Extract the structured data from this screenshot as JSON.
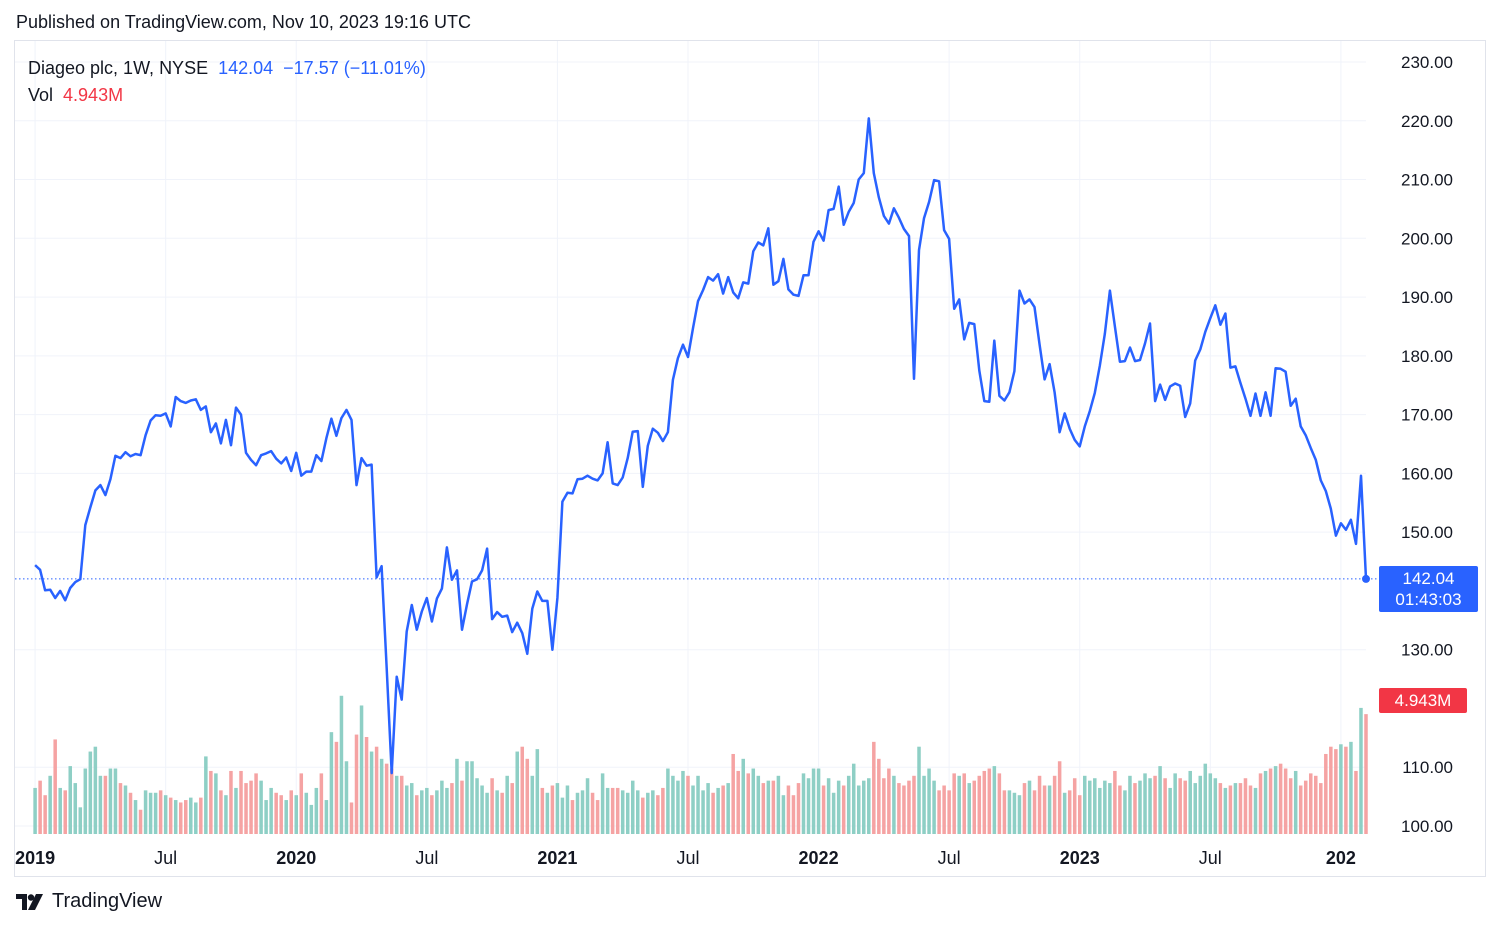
{
  "header": {
    "published": "Published on TradingView.com, Nov 10, 2023 19:16 UTC"
  },
  "legend": {
    "symbol": "Diageo plc, 1W, NYSE",
    "price": "142.04",
    "change": "−17.57 (−11.01%)",
    "vol_label": "Vol",
    "vol_value": "4.943M"
  },
  "price_tag": {
    "price": "142.04",
    "countdown": "01:43:03"
  },
  "vol_tag": {
    "value": "4.943M"
  },
  "footer": {
    "brand": "TradingView"
  },
  "colors": {
    "line": "#2962ff",
    "vol_up": "#8ecfc5",
    "vol_down": "#f5a3a3",
    "grid": "#f0f3fa"
  },
  "chart_data": {
    "type": "line",
    "y_ticks": [
      "230.00",
      "220.00",
      "210.00",
      "200.00",
      "190.00",
      "180.00",
      "170.00",
      "160.00",
      "150.00",
      "130.00",
      "110.00",
      "100.00"
    ],
    "ylim": [
      100,
      230
    ],
    "x_ticks": [
      {
        "label": "2019",
        "t": 0,
        "year": true
      },
      {
        "label": "Jul",
        "t": 26,
        "year": false
      },
      {
        "label": "2020",
        "t": 52,
        "year": true
      },
      {
        "label": "Jul",
        "t": 78,
        "year": false
      },
      {
        "label": "2021",
        "t": 104,
        "year": true
      },
      {
        "label": "Jul",
        "t": 130,
        "year": false
      },
      {
        "label": "2022",
        "t": 156,
        "year": true
      },
      {
        "label": "Jul",
        "t": 182,
        "year": false
      },
      {
        "label": "2023",
        "t": 208,
        "year": true
      },
      {
        "label": "Jul",
        "t": 234,
        "year": false
      },
      {
        "label": "202",
        "t": 260,
        "year": true
      }
    ],
    "x_start": -4,
    "x_end": 265,
    "series": [
      {
        "values": [
          144.4,
          143.6,
          140.1,
          140.2,
          138.8,
          140.0,
          138.4,
          140.5,
          141.5,
          142.0,
          151.2,
          154.2,
          157.1,
          158.0,
          156.3,
          159.0,
          163.0,
          162.6,
          163.6,
          162.9,
          163.3,
          163.1,
          166.5,
          169.0,
          169.9,
          169.8,
          170.2,
          168.0,
          173.0,
          172.3,
          172.0,
          172.4,
          172.6,
          170.8,
          171.4,
          167.0,
          168.5,
          165.1,
          169.1,
          164.8,
          171.2,
          170.0,
          163.5,
          162.3,
          161.4,
          163.1,
          163.4,
          163.8,
          162.5,
          161.7,
          162.7,
          160.4,
          163.5,
          159.6,
          160.3,
          160.3,
          163.1,
          162.1,
          166.0,
          169.3,
          166.4,
          169.4,
          170.8,
          169.1,
          158.0,
          162.6,
          161.3,
          161.5,
          142.3,
          144.2,
          126.8,
          109.0,
          125.4,
          121.5,
          133.1,
          137.6,
          133.4,
          136.5,
          138.8,
          134.8,
          138.7,
          140.4,
          147.4,
          141.9,
          143.5,
          133.4,
          137.7,
          141.6,
          142.0,
          143.5,
          147.2,
          135.2,
          136.4,
          135.6,
          135.8,
          133.0,
          134.6,
          132.8,
          129.3,
          137.0,
          139.9,
          138.3,
          138.3,
          130.0,
          138.8,
          155.2,
          156.7,
          156.6,
          159.0,
          159.1,
          159.6,
          159.1,
          158.8,
          160.0,
          165.3,
          158.3,
          158.0,
          159.3,
          162.6,
          167.1,
          167.2,
          157.7,
          164.7,
          167.6,
          166.9,
          165.5,
          167.0,
          175.9,
          179.6,
          181.9,
          179.8,
          184.7,
          189.3,
          191.2,
          193.4,
          192.8,
          193.9,
          190.6,
          193.4,
          190.8,
          189.8,
          192.5,
          192.3,
          197.8,
          199.3,
          198.8,
          201.7,
          192.1,
          192.7,
          196.5,
          191.3,
          190.4,
          190.2,
          193.7,
          193.7,
          199.4,
          201.2,
          199.6,
          204.8,
          205.0,
          208.8,
          202.3,
          204.5,
          206.0,
          210.0,
          211.1,
          220.4,
          211.1,
          207.0,
          203.8,
          202.5,
          205.1,
          203.5,
          201.6,
          200.4,
          176.1,
          198.0,
          203.4,
          206.2,
          209.9,
          209.7,
          201.4,
          199.9,
          188.0,
          189.6,
          182.8,
          185.6,
          185.4,
          177.5,
          172.3,
          172.2,
          182.6,
          173.2,
          172.4,
          173.8,
          177.4,
          191.1,
          188.9,
          189.6,
          188.3,
          181.9,
          176.0,
          178.6,
          173.8,
          167.0,
          170.2,
          167.6,
          165.7,
          164.6,
          168.0,
          170.6,
          173.7,
          178.3,
          183.7,
          191.1,
          185.0,
          179.0,
          179.1,
          181.4,
          179.1,
          179.3,
          182.1,
          185.5,
          172.3,
          175.1,
          172.5,
          174.8,
          175.3,
          174.9,
          169.6,
          171.9,
          179.2,
          181.1,
          184.1,
          186.4,
          188.6,
          185.3,
          187.2,
          178.0,
          178.2,
          175.4,
          172.7,
          169.8,
          173.6,
          169.8,
          173.8,
          169.8,
          177.9,
          177.8,
          177.3,
          171.5,
          172.7,
          168.0,
          166.5,
          164.3,
          162.3,
          158.8,
          157.0,
          154.0,
          149.4,
          151.5,
          150.4,
          152.1,
          148.0,
          159.6,
          142.04
        ]
      }
    ],
    "volume": {
      "ylim": [
        0,
        8
      ],
      "values": [
        1.9,
        2.2,
        1.6,
        2.4,
        3.9,
        1.9,
        1.8,
        2.8,
        2.1,
        1.1,
        2.7,
        3.4,
        3.6,
        2.4,
        2.4,
        2.7,
        2.7,
        2.1,
        2.0,
        1.7,
        1.4,
        1.0,
        1.8,
        1.7,
        1.7,
        1.8,
        1.6,
        1.5,
        1.4,
        1.3,
        1.4,
        1.5,
        1.3,
        1.5,
        3.2,
        2.6,
        2.5,
        1.8,
        1.6,
        2.6,
        1.9,
        2.6,
        2.1,
        2.2,
        2.5,
        2.2,
        1.4,
        1.9,
        1.7,
        1.6,
        1.4,
        1.8,
        1.6,
        2.5,
        1.7,
        1.2,
        1.9,
        2.5,
        1.4,
        4.2,
        3.8,
        5.7,
        3.0,
        1.3,
        4.1,
        5.3,
        4.0,
        3.4,
        3.6,
        3.1,
        2.9,
        2.7,
        2.4,
        2.4,
        2.0,
        2.1,
        1.6,
        1.8,
        1.9,
        1.6,
        1.8,
        2.2,
        1.9,
        2.1,
        3.1,
        2.2,
        3.0,
        3.0,
        2.3,
        2.0,
        1.7,
        2.3,
        1.8,
        1.7,
        2.4,
        2.1,
        3.4,
        3.6,
        3.1,
        2.4,
        3.5,
        1.9,
        1.7,
        2.0,
        2.1,
        1.5,
        2.0,
        1.4,
        1.7,
        1.8,
        2.3,
        1.7,
        1.4,
        2.5,
        1.9,
        1.9,
        1.9,
        1.8,
        1.7,
        2.2,
        1.8,
        1.5,
        1.7,
        1.8,
        1.6,
        1.9,
        2.7,
        2.4,
        2.2,
        2.6,
        2.4,
        2.0,
        2.4,
        1.8,
        2.1,
        1.7,
        1.9,
        2.0,
        2.1,
        3.3,
        2.6,
        3.1,
        2.5,
        2.7,
        2.4,
        2.1,
        2.2,
        2.2,
        2.4,
        1.6,
        2.0,
        1.6,
        2.1,
        2.5,
        2.3,
        2.7,
        2.7,
        2.0,
        2.3,
        1.7,
        2.2,
        2.0,
        2.4,
        2.9,
        2.0,
        2.2,
        2.3,
        3.8,
        3.1,
        2.3,
        2.7,
        2.4,
        2.1,
        2.0,
        2.2,
        2.4,
        3.6,
        2.4,
        2.7,
        2.2,
        1.8,
        2.0,
        1.8,
        2.5,
        2.4,
        2.5,
        2.1,
        2.2,
        2.4,
        2.6,
        2.7,
        2.8,
        2.5,
        1.8,
        1.8,
        1.7,
        1.6,
        2.1,
        2.2,
        1.8,
        2.4,
        2.0,
        2.0,
        2.4,
        3.0,
        1.7,
        1.8,
        2.3,
        1.6,
        2.4,
        2.2,
        2.3,
        1.9,
        2.2,
        2.1,
        2.6,
        2.0,
        1.8,
        2.4,
        2.1,
        2.2,
        2.5,
        2.3,
        2.4,
        2.8,
        2.3,
        1.9,
        2.5,
        2.3,
        2.2,
        2.6,
        2.1,
        2.4,
        2.9,
        2.5,
        2.3,
        2.1,
        1.9,
        2.0,
        2.1,
        2.1,
        2.3,
        2.0,
        1.9,
        2.5,
        2.6,
        2.7,
        2.8,
        2.9,
        2.7,
        2.3,
        2.6,
        2.0,
        2.2,
        2.5,
        2.4,
        2.1,
        3.3,
        3.6,
        3.5,
        3.7,
        3.6,
        3.8,
        2.6,
        5.2,
        4.943
      ]
    }
  }
}
